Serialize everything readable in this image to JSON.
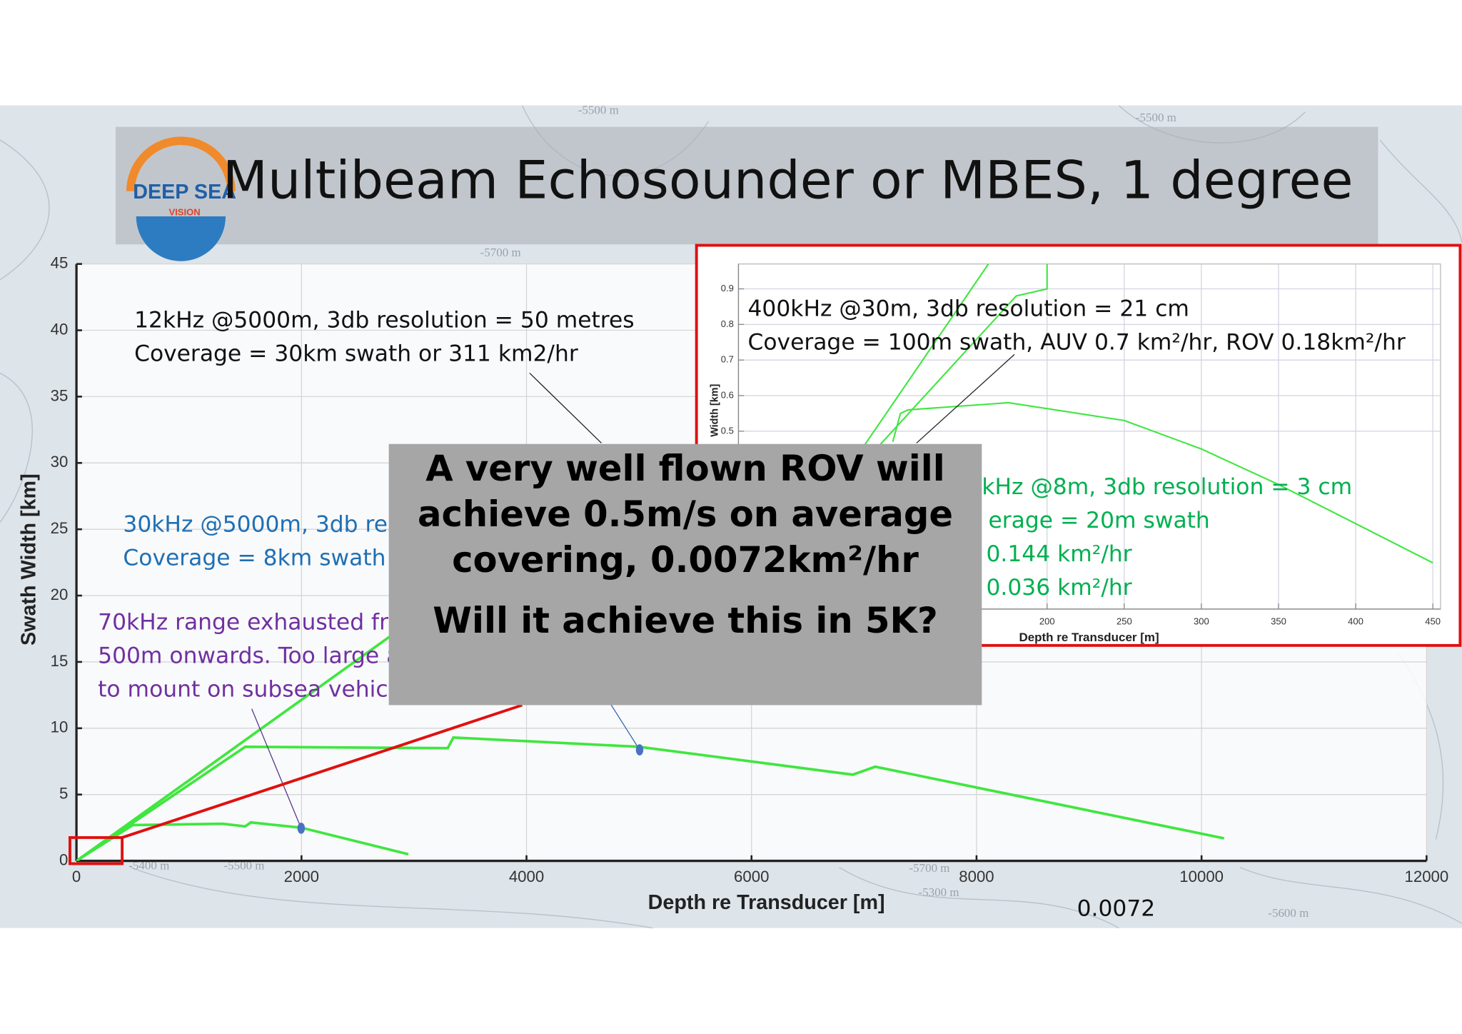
{
  "title": "Multibeam Echosounder or MBES, 1 degree",
  "logo": {
    "line1": "DEEP SEA",
    "line2": "VISION"
  },
  "map_labels": [
    "-5500 m",
    "-5700 m",
    "-5500 m",
    "-5400 m",
    "-5500 m",
    "-5700 m",
    "-5300 m",
    "-5600 m"
  ],
  "chart_data": [
    {
      "type": "line",
      "xlabel": "Depth re Transducer [m]",
      "ylabel": "Swath Width [km]",
      "xlim": [
        0,
        12000
      ],
      "ylim": [
        0,
        45
      ],
      "xticks": [
        0,
        2000,
        4000,
        6000,
        8000,
        10000,
        12000
      ],
      "yticks": [
        0,
        5,
        10,
        15,
        20,
        25,
        30,
        35,
        40,
        45
      ],
      "grid": true,
      "series": [
        {
          "color": "#3fe63f",
          "x": [
            0,
            2800
          ],
          "values": [
            0,
            17
          ]
        },
        {
          "color": "#3fe63f",
          "x": [
            0,
            1500,
            3300,
            3350,
            5000,
            6900,
            7100,
            10200
          ],
          "values": [
            0,
            8.6,
            8.5,
            9.3,
            8.6,
            6.5,
            7.1,
            1.7
          ]
        },
        {
          "color": "#3fe63f",
          "x": [
            0,
            500,
            1300,
            1500,
            1550,
            2000,
            2950
          ],
          "values": [
            0,
            2.7,
            2.8,
            2.6,
            2.9,
            2.5,
            0.5
          ]
        }
      ]
    },
    {
      "type": "line",
      "xlabel": "Depth re Transducer [m]",
      "ylabel": "Width [km]",
      "xlim": [
        0,
        455
      ],
      "ylim": [
        0,
        0.97
      ],
      "xticks": [
        200,
        250,
        300,
        350,
        400,
        450
      ],
      "yticks": [
        0.5,
        0.6,
        0.7,
        0.8,
        0.9
      ],
      "grid": true,
      "series": [
        {
          "color": "#3fe63f",
          "x": [
            80,
            162
          ],
          "values": [
            0.45,
            0.97
          ]
        },
        {
          "color": "#3fe63f",
          "x": [
            85,
            180,
            200,
            200
          ],
          "values": [
            0.43,
            0.88,
            0.9,
            0.97
          ]
        },
        {
          "color": "#3fe63f",
          "x": [
            100,
            105,
            110,
            175,
            250,
            300,
            350,
            400,
            450
          ],
          "values": [
            0.47,
            0.55,
            0.56,
            0.58,
            0.53,
            0.45,
            0.35,
            0.24,
            0.13
          ]
        }
      ]
    }
  ],
  "annotations": [
    {
      "color": "#111111",
      "lines": [
        "12kHz @5000m, 3db resolution = 50 metres",
        "Coverage = 30km swath or 311 km2/hr"
      ]
    },
    {
      "color": "#111111",
      "lines": [
        "400kHz @30m, 3db resolution = 21 cm",
        "Coverage = 100m swath, AUV 0.7 km²/hr, ROV 0.18km²/hr"
      ]
    },
    {
      "color": "#1f6fb4",
      "lines": [
        "30kHz @5000m, 3db res",
        "Coverage = 8km swath c"
      ]
    },
    {
      "color": "#7030a0",
      "lines": [
        "70kHz range exhausted fro",
        "500m onwards. Too large a",
        "to mount on subsea vehicl"
      ]
    },
    {
      "color": "#00b050",
      "lines": [
        "kHz @8m, 3db resolution = 3 cm",
        "erage = 20m swath",
        "/ 0.144 km²/hr",
        "/ 0.036 km²/hr"
      ]
    }
  ],
  "callout": {
    "lines": [
      "A very well flown ROV will",
      "achieve 0.5m/s on average",
      "covering, 0.0072km²/hr",
      "Will it achieve this in 5K?"
    ]
  },
  "footnote": "0.0072"
}
